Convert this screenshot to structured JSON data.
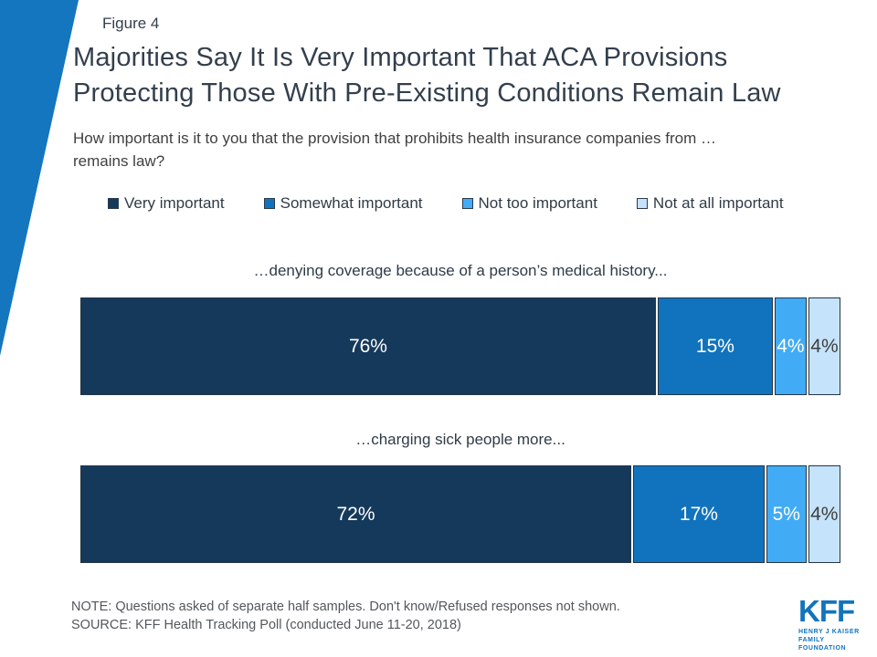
{
  "figure_label": "Figure 4",
  "title_line1": "Majorities Say It Is Very Important That ACA Provisions",
  "title_line2": "Protecting Those With Pre-Existing Conditions Remain Law",
  "subtitle_line1": "How important is it to you that the provision that prohibits health insurance companies from …",
  "subtitle_line2": "remains law?",
  "chart_data": {
    "type": "bar",
    "orientation": "horizontal-stacked",
    "xlim": [
      0,
      100
    ],
    "grid": false,
    "legend_position": "top",
    "series": [
      {
        "name": "Very important",
        "color": "#15395B"
      },
      {
        "name": "Somewhat important",
        "color": "#1173BE"
      },
      {
        "name": "Not too important",
        "color": "#41ABF5"
      },
      {
        "name": "Not at all important",
        "color": "#C5E3FA"
      }
    ],
    "bars": [
      {
        "category": "…denying coverage because of a person’s medical history...",
        "values": [
          76,
          15,
          4,
          4
        ],
        "labels": [
          "76%",
          "15%",
          "4%",
          "4%"
        ],
        "label_styles": [
          "light",
          "light",
          "light",
          "dark"
        ]
      },
      {
        "category": "…charging sick people more...",
        "values": [
          72,
          17,
          5,
          4
        ],
        "labels": [
          "72%",
          "17%",
          "5%",
          "4%"
        ],
        "label_styles": [
          "light",
          "light",
          "light",
          "dark"
        ]
      }
    ]
  },
  "note": "NOTE: Questions asked of separate half samples. Don't know/Refused responses not shown.",
  "source": "SOURCE: KFF Health Tracking Poll (conducted June 11-20, 2018)",
  "logo": {
    "kff": "KFF",
    "sub_line1": "HENRY J KAISER",
    "sub_line2": "FAMILY FOUNDATION"
  },
  "colors": {
    "accent_blue": "#1476BE",
    "title_text": "#333F4D",
    "note_text": "#53575C"
  }
}
